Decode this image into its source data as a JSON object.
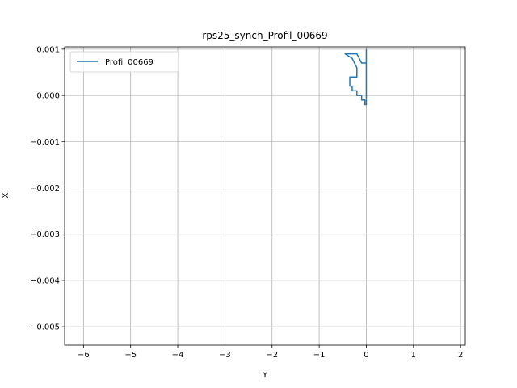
{
  "chart_data": {
    "type": "line",
    "title": "rps25_synch_Profil_00669",
    "xlabel": "Y",
    "ylabel": "X",
    "xlim": [
      -6.4,
      2.1
    ],
    "ylim": [
      -0.0054,
      0.00105
    ],
    "xticks": [
      -6,
      -5,
      -4,
      -3,
      -2,
      -1,
      0,
      1,
      2
    ],
    "xtick_labels": [
      "−6",
      "−5",
      "−4",
      "−3",
      "−2",
      "−1",
      "0",
      "1",
      "2"
    ],
    "yticks": [
      0.001,
      0.0,
      -0.001,
      -0.002,
      -0.003,
      -0.004,
      -0.005
    ],
    "ytick_labels": [
      "0.001",
      "0.000",
      "−0.001",
      "−0.002",
      "−0.003",
      "−0.004",
      "−0.005"
    ],
    "grid": true,
    "legend_position": "upper-left",
    "series": [
      {
        "name": "Profil 00669",
        "color": "#1f77b4",
        "points": [
          [
            0.0,
            0.001
          ],
          [
            0.0,
            0.0
          ],
          [
            0.0,
            -0.0002
          ],
          [
            -0.03,
            -0.0002
          ],
          [
            -0.03,
            -0.0001
          ],
          [
            -0.1,
            -0.0001
          ],
          [
            -0.1,
            0.0
          ],
          [
            -0.2,
            0.0
          ],
          [
            -0.2,
            0.0001
          ],
          [
            -0.3,
            0.0001
          ],
          [
            -0.3,
            0.0002
          ],
          [
            -0.35,
            0.0002
          ],
          [
            -0.35,
            0.0004
          ],
          [
            -0.2,
            0.0004
          ],
          [
            -0.2,
            0.0006
          ],
          [
            -0.3,
            0.0008
          ],
          [
            -0.45,
            0.0009
          ],
          [
            -0.2,
            0.0009
          ],
          [
            -0.1,
            0.0007
          ],
          [
            0.0,
            0.0007
          ],
          [
            0.0,
            0.001
          ]
        ]
      }
    ]
  },
  "legend": {
    "entry_label": "Profil 00669"
  }
}
